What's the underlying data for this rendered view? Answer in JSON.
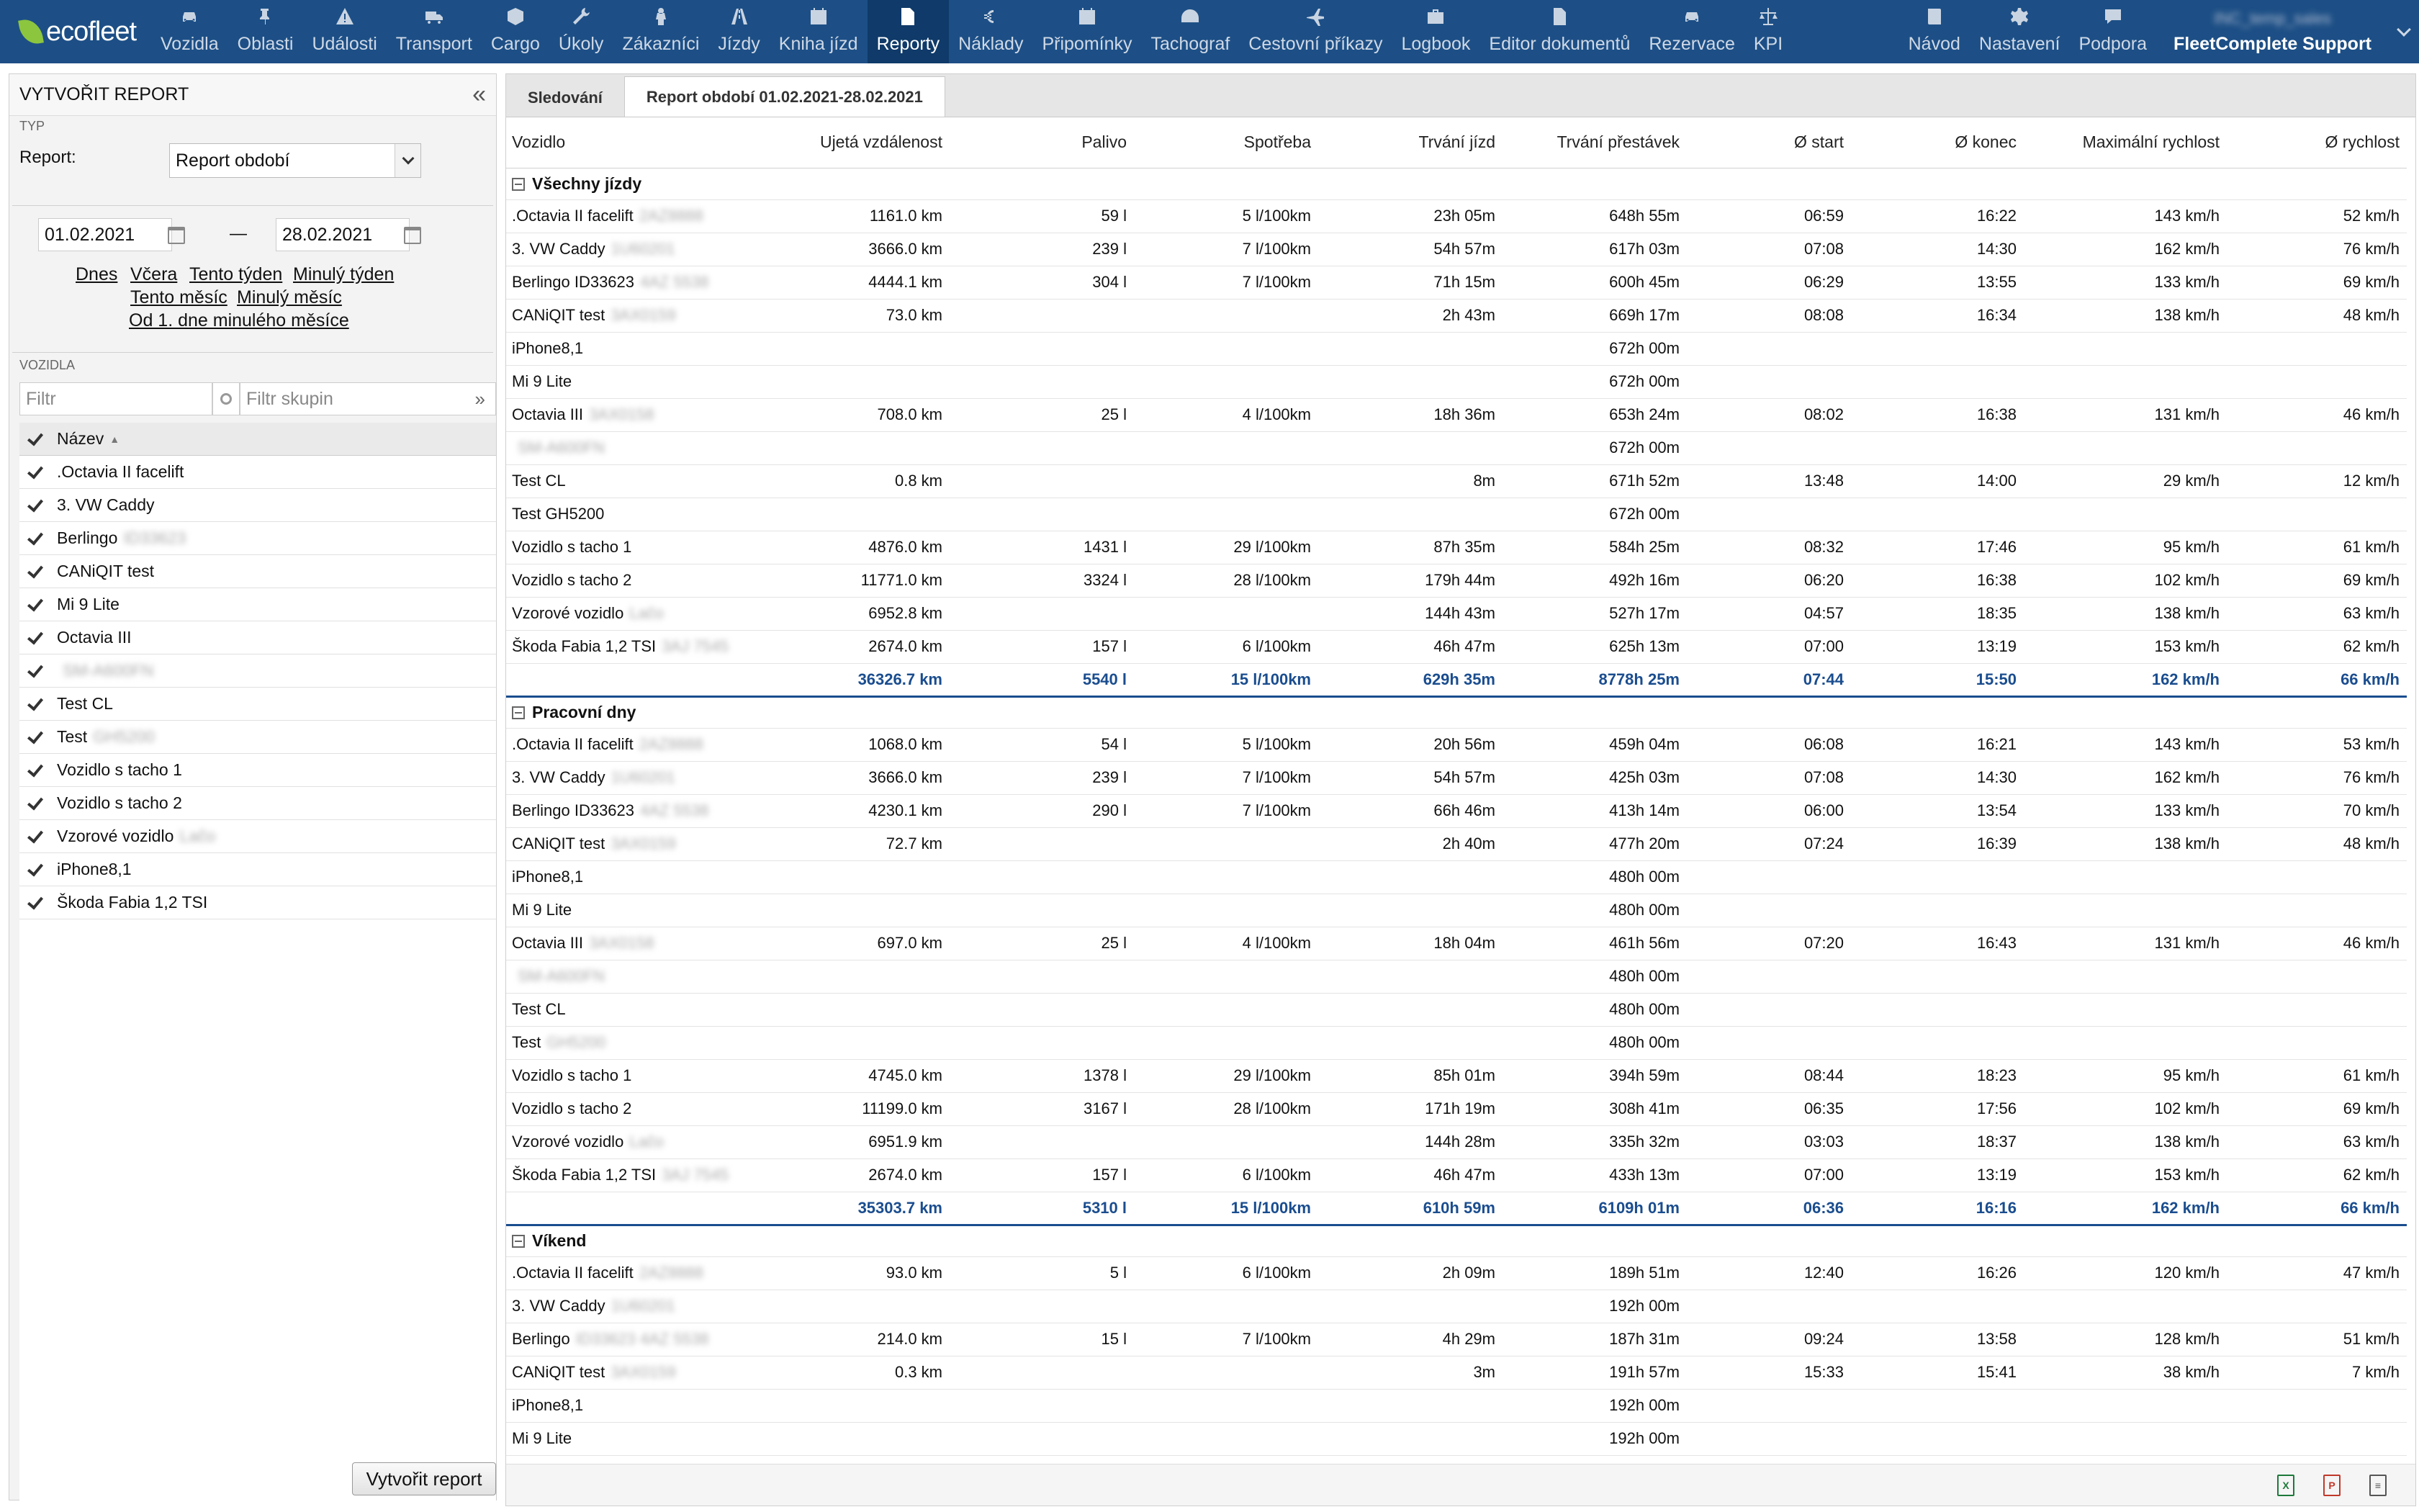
{
  "app": {
    "logo": "ecofleet",
    "user": "FleetComplete Support",
    "user_blur": "INC_temp_sales"
  },
  "nav": [
    {
      "label": "Vozidla",
      "icon": "car-icon"
    },
    {
      "label": "Oblasti",
      "icon": "pin-icon"
    },
    {
      "label": "Události",
      "icon": "warning-icon"
    },
    {
      "label": "Transport",
      "icon": "truck-icon"
    },
    {
      "label": "Cargo",
      "icon": "box-icon"
    },
    {
      "label": "Úkoly",
      "icon": "wrench-icon"
    },
    {
      "label": "Zákazníci",
      "icon": "person-icon"
    },
    {
      "label": "Jízdy",
      "icon": "road-icon"
    },
    {
      "label": "Kniha jízd",
      "icon": "calendar-icon"
    },
    {
      "label": "Reporty",
      "icon": "document-icon",
      "active": true
    },
    {
      "label": "Náklady",
      "icon": "euro-icon"
    },
    {
      "label": "Připomínky",
      "icon": "calendar-check-icon"
    },
    {
      "label": "Tachograf",
      "icon": "gauge-icon"
    },
    {
      "label": "Cestovní příkazy",
      "icon": "plane-icon"
    },
    {
      "label": "Logbook",
      "icon": "briefcase-icon"
    },
    {
      "label": "Editor dokumentů",
      "icon": "file-icon"
    },
    {
      "label": "Rezervace",
      "icon": "car-icon"
    },
    {
      "label": "KPI",
      "icon": "scale-icon"
    }
  ],
  "nav_right": [
    {
      "label": "Návod",
      "icon": "book-icon"
    },
    {
      "label": "Nastavení",
      "icon": "gear-icon"
    },
    {
      "label": "Podpora",
      "icon": "chat-icon"
    }
  ],
  "left": {
    "title": "VYTVOŘIT REPORT",
    "typ_label": "TYP",
    "report_label": "Report:",
    "report_value": "Report období",
    "date_from": "01.02.2021",
    "date_to": "28.02.2021",
    "dash": "—",
    "quick": [
      "Dnes",
      "Včera",
      "Tento týden",
      "Minulý týden",
      "Tento měsíc",
      "Minulý měsíc",
      "Od 1. dne minulého měsíce"
    ],
    "vozidla_label": "VOZIDLA",
    "filter_placeholder": "Filtr",
    "group_placeholder": "Filtr skupin",
    "name_header": "Název",
    "vehicles": [
      {
        "name": ".Octavia II facelift",
        "blur": ""
      },
      {
        "name": "3. VW Caddy",
        "blur": ""
      },
      {
        "name": "Berlingo",
        "blur": "ID33623"
      },
      {
        "name": "CANiQIT test",
        "blur": ""
      },
      {
        "name": "Mi 9 Lite",
        "blur": ""
      },
      {
        "name": "Octavia III",
        "blur": ""
      },
      {
        "name": "",
        "blur": "SM-A600FN"
      },
      {
        "name": "Test CL",
        "blur": ""
      },
      {
        "name": "Test",
        "blur": "GH5200"
      },
      {
        "name": "Vozidlo s tacho 1",
        "blur": ""
      },
      {
        "name": "Vozidlo s tacho 2",
        "blur": ""
      },
      {
        "name": "Vzorové vozidlo",
        "blur": "Lačo"
      },
      {
        "name": "iPhone8,1",
        "blur": ""
      },
      {
        "name": "Škoda Fabia 1,2 TSI",
        "blur": ""
      }
    ],
    "create_button": "Vytvořit report"
  },
  "tabs": [
    {
      "label": "Sledování"
    },
    {
      "label": "Report období 01.02.2021-28.02.2021",
      "active": true
    }
  ],
  "columns": [
    "Vozidlo",
    "Ujetá vzdálenost",
    "Palivo",
    "Spotřeba",
    "Trvání jízd",
    "Trvání přestávek",
    "Ø start",
    "Ø konec",
    "Maximální rychlost",
    "Ø rychlost"
  ],
  "groups": [
    {
      "title": "Všechny jízdy",
      "rows": [
        [
          ".Octavia II facelift",
          "2AZ8888",
          "1161.0 km",
          "59 l",
          "5 l/100km",
          "23h 05m",
          "648h 55m",
          "06:59",
          "16:22",
          "143 km/h",
          "52 km/h"
        ],
        [
          "3. VW Caddy",
          "1U60201",
          "3666.0 km",
          "239 l",
          "7 l/100km",
          "54h 57m",
          "617h 03m",
          "07:08",
          "14:30",
          "162 km/h",
          "76 km/h"
        ],
        [
          "Berlingo ID33623",
          "4AZ 5538",
          "4444.1 km",
          "304 l",
          "7 l/100km",
          "71h 15m",
          "600h 45m",
          "06:29",
          "13:55",
          "133 km/h",
          "69 km/h"
        ],
        [
          "CANiQIT test",
          "3AX0159",
          "73.0 km",
          "",
          "",
          "2h 43m",
          "669h 17m",
          "08:08",
          "16:34",
          "138 km/h",
          "48 km/h"
        ],
        [
          "iPhone8,1",
          "",
          "",
          "",
          "",
          "",
          "672h 00m",
          "",
          "",
          "",
          ""
        ],
        [
          "Mi 9 Lite",
          "",
          "",
          "",
          "",
          "",
          "672h 00m",
          "",
          "",
          "",
          ""
        ],
        [
          "Octavia III",
          "3AX0158",
          "708.0 km",
          "25 l",
          "4 l/100km",
          "18h 36m",
          "653h 24m",
          "08:02",
          "16:38",
          "131 km/h",
          "46 km/h"
        ],
        [
          "",
          "SM-A600FN",
          "",
          "",
          "",
          "",
          "672h 00m",
          "",
          "",
          "",
          ""
        ],
        [
          "Test CL",
          "",
          "0.8 km",
          "",
          "",
          "8m",
          "671h 52m",
          "13:48",
          "14:00",
          "29 km/h",
          "12 km/h"
        ],
        [
          "Test GH5200",
          "",
          "",
          "",
          "",
          "",
          "672h 00m",
          "",
          "",
          "",
          ""
        ],
        [
          "Vozidlo s tacho 1",
          "",
          "4876.0 km",
          "1431 l",
          "29 l/100km",
          "87h 35m",
          "584h 25m",
          "08:32",
          "17:46",
          "95 km/h",
          "61 km/h"
        ],
        [
          "Vozidlo s tacho 2",
          "",
          "11771.0 km",
          "3324 l",
          "28 l/100km",
          "179h 44m",
          "492h 16m",
          "06:20",
          "16:38",
          "102 km/h",
          "69 km/h"
        ],
        [
          "Vzorové vozidlo",
          "Lačo",
          "6952.8 km",
          "",
          "",
          "144h 43m",
          "527h 17m",
          "04:57",
          "18:35",
          "138 km/h",
          "63 km/h"
        ],
        [
          "Škoda Fabia 1,2 TSI",
          "3AJ 7545",
          "2674.0 km",
          "157 l",
          "6 l/100km",
          "46h 47m",
          "625h 13m",
          "07:00",
          "13:19",
          "153 km/h",
          "62 km/h"
        ]
      ],
      "total": [
        "",
        "36326.7 km",
        "5540 l",
        "15 l/100km",
        "629h 35m",
        "8778h 25m",
        "07:44",
        "15:50",
        "162 km/h",
        "66 km/h"
      ]
    },
    {
      "title": "Pracovní dny",
      "rows": [
        [
          ".Octavia II facelift",
          "2AZ8888",
          "1068.0 km",
          "54 l",
          "5 l/100km",
          "20h 56m",
          "459h 04m",
          "06:08",
          "16:21",
          "143 km/h",
          "53 km/h"
        ],
        [
          "3. VW Caddy",
          "1U60201",
          "3666.0 km",
          "239 l",
          "7 l/100km",
          "54h 57m",
          "425h 03m",
          "07:08",
          "14:30",
          "162 km/h",
          "76 km/h"
        ],
        [
          "Berlingo ID33623",
          "4AZ 5538",
          "4230.1 km",
          "290 l",
          "7 l/100km",
          "66h 46m",
          "413h 14m",
          "06:00",
          "13:54",
          "133 km/h",
          "70 km/h"
        ],
        [
          "CANiQIT test",
          "3AX0159",
          "72.7 km",
          "",
          "",
          "2h 40m",
          "477h 20m",
          "07:24",
          "16:39",
          "138 km/h",
          "48 km/h"
        ],
        [
          "iPhone8,1",
          "",
          "",
          "",
          "",
          "",
          "480h 00m",
          "",
          "",
          "",
          ""
        ],
        [
          "Mi 9 Lite",
          "",
          "",
          "",
          "",
          "",
          "480h 00m",
          "",
          "",
          "",
          ""
        ],
        [
          "Octavia III",
          "3AX0158",
          "697.0 km",
          "25 l",
          "4 l/100km",
          "18h 04m",
          "461h 56m",
          "07:20",
          "16:43",
          "131 km/h",
          "46 km/h"
        ],
        [
          "",
          "SM-A600FN",
          "",
          "",
          "",
          "",
          "480h 00m",
          "",
          "",
          "",
          ""
        ],
        [
          "Test CL",
          "",
          "",
          "",
          "",
          "",
          "480h 00m",
          "",
          "",
          "",
          ""
        ],
        [
          "Test",
          "GH5200",
          "",
          "",
          "",
          "",
          "480h 00m",
          "",
          "",
          "",
          ""
        ],
        [
          "Vozidlo s tacho 1",
          "",
          "4745.0 km",
          "1378 l",
          "29 l/100km",
          "85h 01m",
          "394h 59m",
          "08:44",
          "18:23",
          "95 km/h",
          "61 km/h"
        ],
        [
          "Vozidlo s tacho 2",
          "",
          "11199.0 km",
          "3167 l",
          "28 l/100km",
          "171h 19m",
          "308h 41m",
          "06:35",
          "17:56",
          "102 km/h",
          "69 km/h"
        ],
        [
          "Vzorové vozidlo",
          "Lačo",
          "6951.9 km",
          "",
          "",
          "144h 28m",
          "335h 32m",
          "03:03",
          "18:37",
          "138 km/h",
          "63 km/h"
        ],
        [
          "Škoda Fabia 1,2 TSI",
          "3AJ 7545",
          "2674.0 km",
          "157 l",
          "6 l/100km",
          "46h 47m",
          "433h 13m",
          "07:00",
          "13:19",
          "153 km/h",
          "62 km/h"
        ]
      ],
      "total": [
        "",
        "35303.7 km",
        "5310 l",
        "15 l/100km",
        "610h 59m",
        "6109h 01m",
        "06:36",
        "16:16",
        "162 km/h",
        "66 km/h"
      ]
    },
    {
      "title": "Víkend",
      "rows": [
        [
          ".Octavia II facelift",
          "2AZ8888",
          "93.0 km",
          "5 l",
          "6 l/100km",
          "2h 09m",
          "189h 51m",
          "12:40",
          "16:26",
          "120 km/h",
          "47 km/h"
        ],
        [
          "3. VW Caddy",
          "1U60201",
          "",
          "",
          "",
          "",
          "192h 00m",
          "",
          "",
          "",
          ""
        ],
        [
          "Berlingo",
          "ID33623 4AZ 5538",
          "214.0 km",
          "15 l",
          "7 l/100km",
          "4h 29m",
          "187h 31m",
          "09:24",
          "13:58",
          "128 km/h",
          "51 km/h"
        ],
        [
          "CANiQIT test",
          "3AX0159",
          "0.3 km",
          "",
          "",
          "3m",
          "191h 57m",
          "15:33",
          "15:41",
          "38 km/h",
          "7 km/h"
        ],
        [
          "iPhone8,1",
          "",
          "",
          "",
          "",
          "",
          "192h 00m",
          "",
          "",
          "",
          ""
        ],
        [
          "Mi 9 Lite",
          "",
          "",
          "",
          "",
          "",
          "192h 00m",
          "",
          "",
          "",
          ""
        ]
      ]
    }
  ],
  "export": [
    {
      "label": "X",
      "icon": "excel-icon",
      "color": "#1d7a3a"
    },
    {
      "label": "P",
      "icon": "pdf-icon",
      "color": "#c0392b"
    },
    {
      "label": "≡",
      "icon": "text-file-icon",
      "color": "#555"
    }
  ]
}
